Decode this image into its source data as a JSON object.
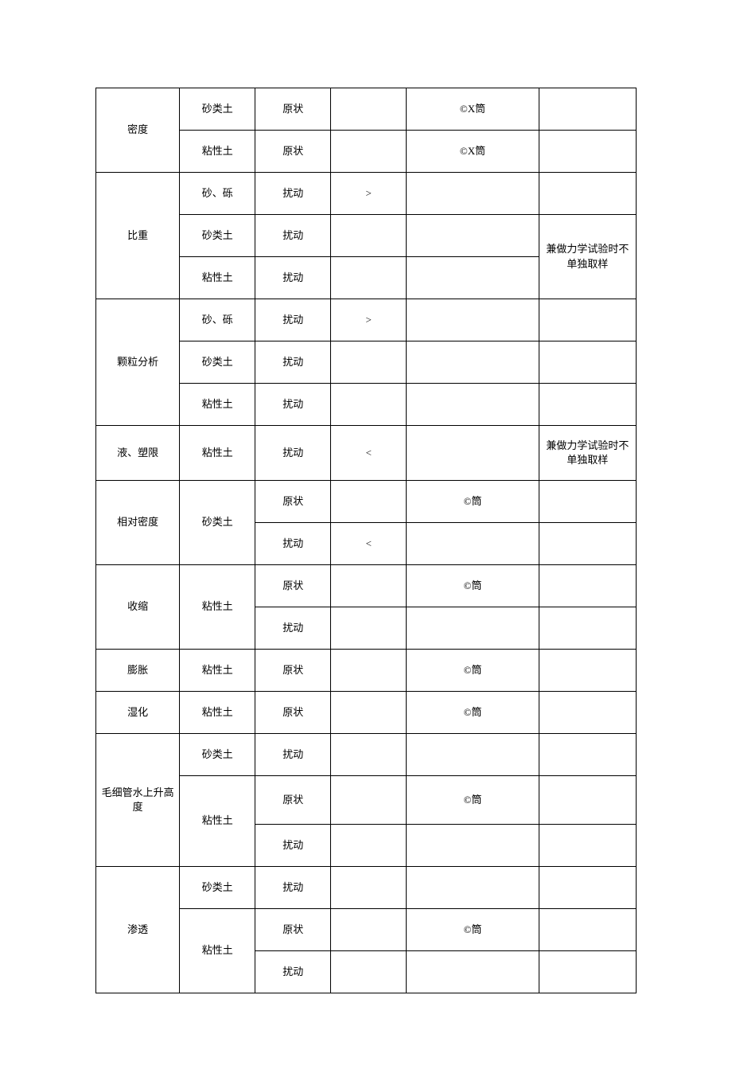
{
  "rows": [
    {
      "c1": "密度",
      "c1rs": 2,
      "c2": "砂类土",
      "c3": "原状",
      "c4": "",
      "c5": "©X筒",
      "c6": "",
      "c6rs": 1
    },
    {
      "c2": "粘性土",
      "c3": "原状",
      "c4": "",
      "c5": "©X筒",
      "c6": ""
    },
    {
      "c1": "比重",
      "c1rs": 3,
      "c2": "砂、砾",
      "c3": "扰动",
      "c4": ">",
      "c5": "",
      "c6": ""
    },
    {
      "c2": "砂类土",
      "c3": "扰动",
      "c4": "",
      "c5": "",
      "c6": "兼做力学试验时不单独取样",
      "c6rs": 2
    },
    {
      "c2": "粘性土",
      "c3": "扰动",
      "c4": "",
      "c5": ""
    },
    {
      "c1": "颗粒分析",
      "c1rs": 3,
      "c2": "砂、砾",
      "c3": "扰动",
      "c4": ">",
      "c5": "",
      "c6": ""
    },
    {
      "c2": "砂类土",
      "c3": "扰动",
      "c4": "",
      "c5": "",
      "c6": ""
    },
    {
      "c2": "粘性土",
      "c3": "扰动",
      "c4": "",
      "c5": "",
      "c6": ""
    },
    {
      "c1": "液、塑限",
      "c1rs": 1,
      "c2": "粘性土",
      "c3": "扰动",
      "c4": "<",
      "c5": "",
      "c6": "兼做力学试验时不单独取样",
      "h": "h64"
    },
    {
      "c1": "相对密度",
      "c1rs": 2,
      "c2": "砂类土",
      "c2rs": 2,
      "c3": "原状",
      "c4": "",
      "c5": "©筒",
      "c6": ""
    },
    {
      "c3": "扰动",
      "c4": "<",
      "c5": "",
      "c6": ""
    },
    {
      "c1": "收缩",
      "c1rs": 2,
      "c2": "粘性土",
      "c2rs": 2,
      "c3": "原状",
      "c4": "",
      "c5": "©筒",
      "c6": ""
    },
    {
      "c3": "扰动",
      "c4": "",
      "c5": "",
      "c6": ""
    },
    {
      "c1": "膨胀",
      "c1rs": 1,
      "c2": "粘性土",
      "c3": "原状",
      "c4": "",
      "c5": "©筒",
      "c6": ""
    },
    {
      "c1": "湿化",
      "c1rs": 1,
      "c2": "粘性土",
      "c3": "原状",
      "c4": "",
      "c5": "©筒",
      "c6": ""
    },
    {
      "c1": "毛细管水上升高度",
      "c1rs": 3,
      "c2": "砂类土",
      "c3": "扰动",
      "c4": "",
      "c5": "",
      "c6": ""
    },
    {
      "c2": "粘性土",
      "c2rs": 2,
      "c3": "原状",
      "c4": "",
      "c5": "©筒",
      "c6": "",
      "h": "h56"
    },
    {
      "c3": "扰动",
      "c4": "",
      "c5": "",
      "c6": ""
    },
    {
      "c1": "渗透",
      "c1rs": 3,
      "c2": "砂类土",
      "c3": "扰动",
      "c4": "",
      "c5": "",
      "c6": ""
    },
    {
      "c2": "粘性土",
      "c2rs": 2,
      "c3": "原状",
      "c4": "",
      "c5": "©筒",
      "c6": ""
    },
    {
      "c3": "扰动",
      "c4": "",
      "c5": "",
      "c6": ""
    }
  ],
  "colors": {
    "border": "#000000",
    "text": "#000000",
    "background": "#ffffff"
  },
  "font_size_pt": 10
}
